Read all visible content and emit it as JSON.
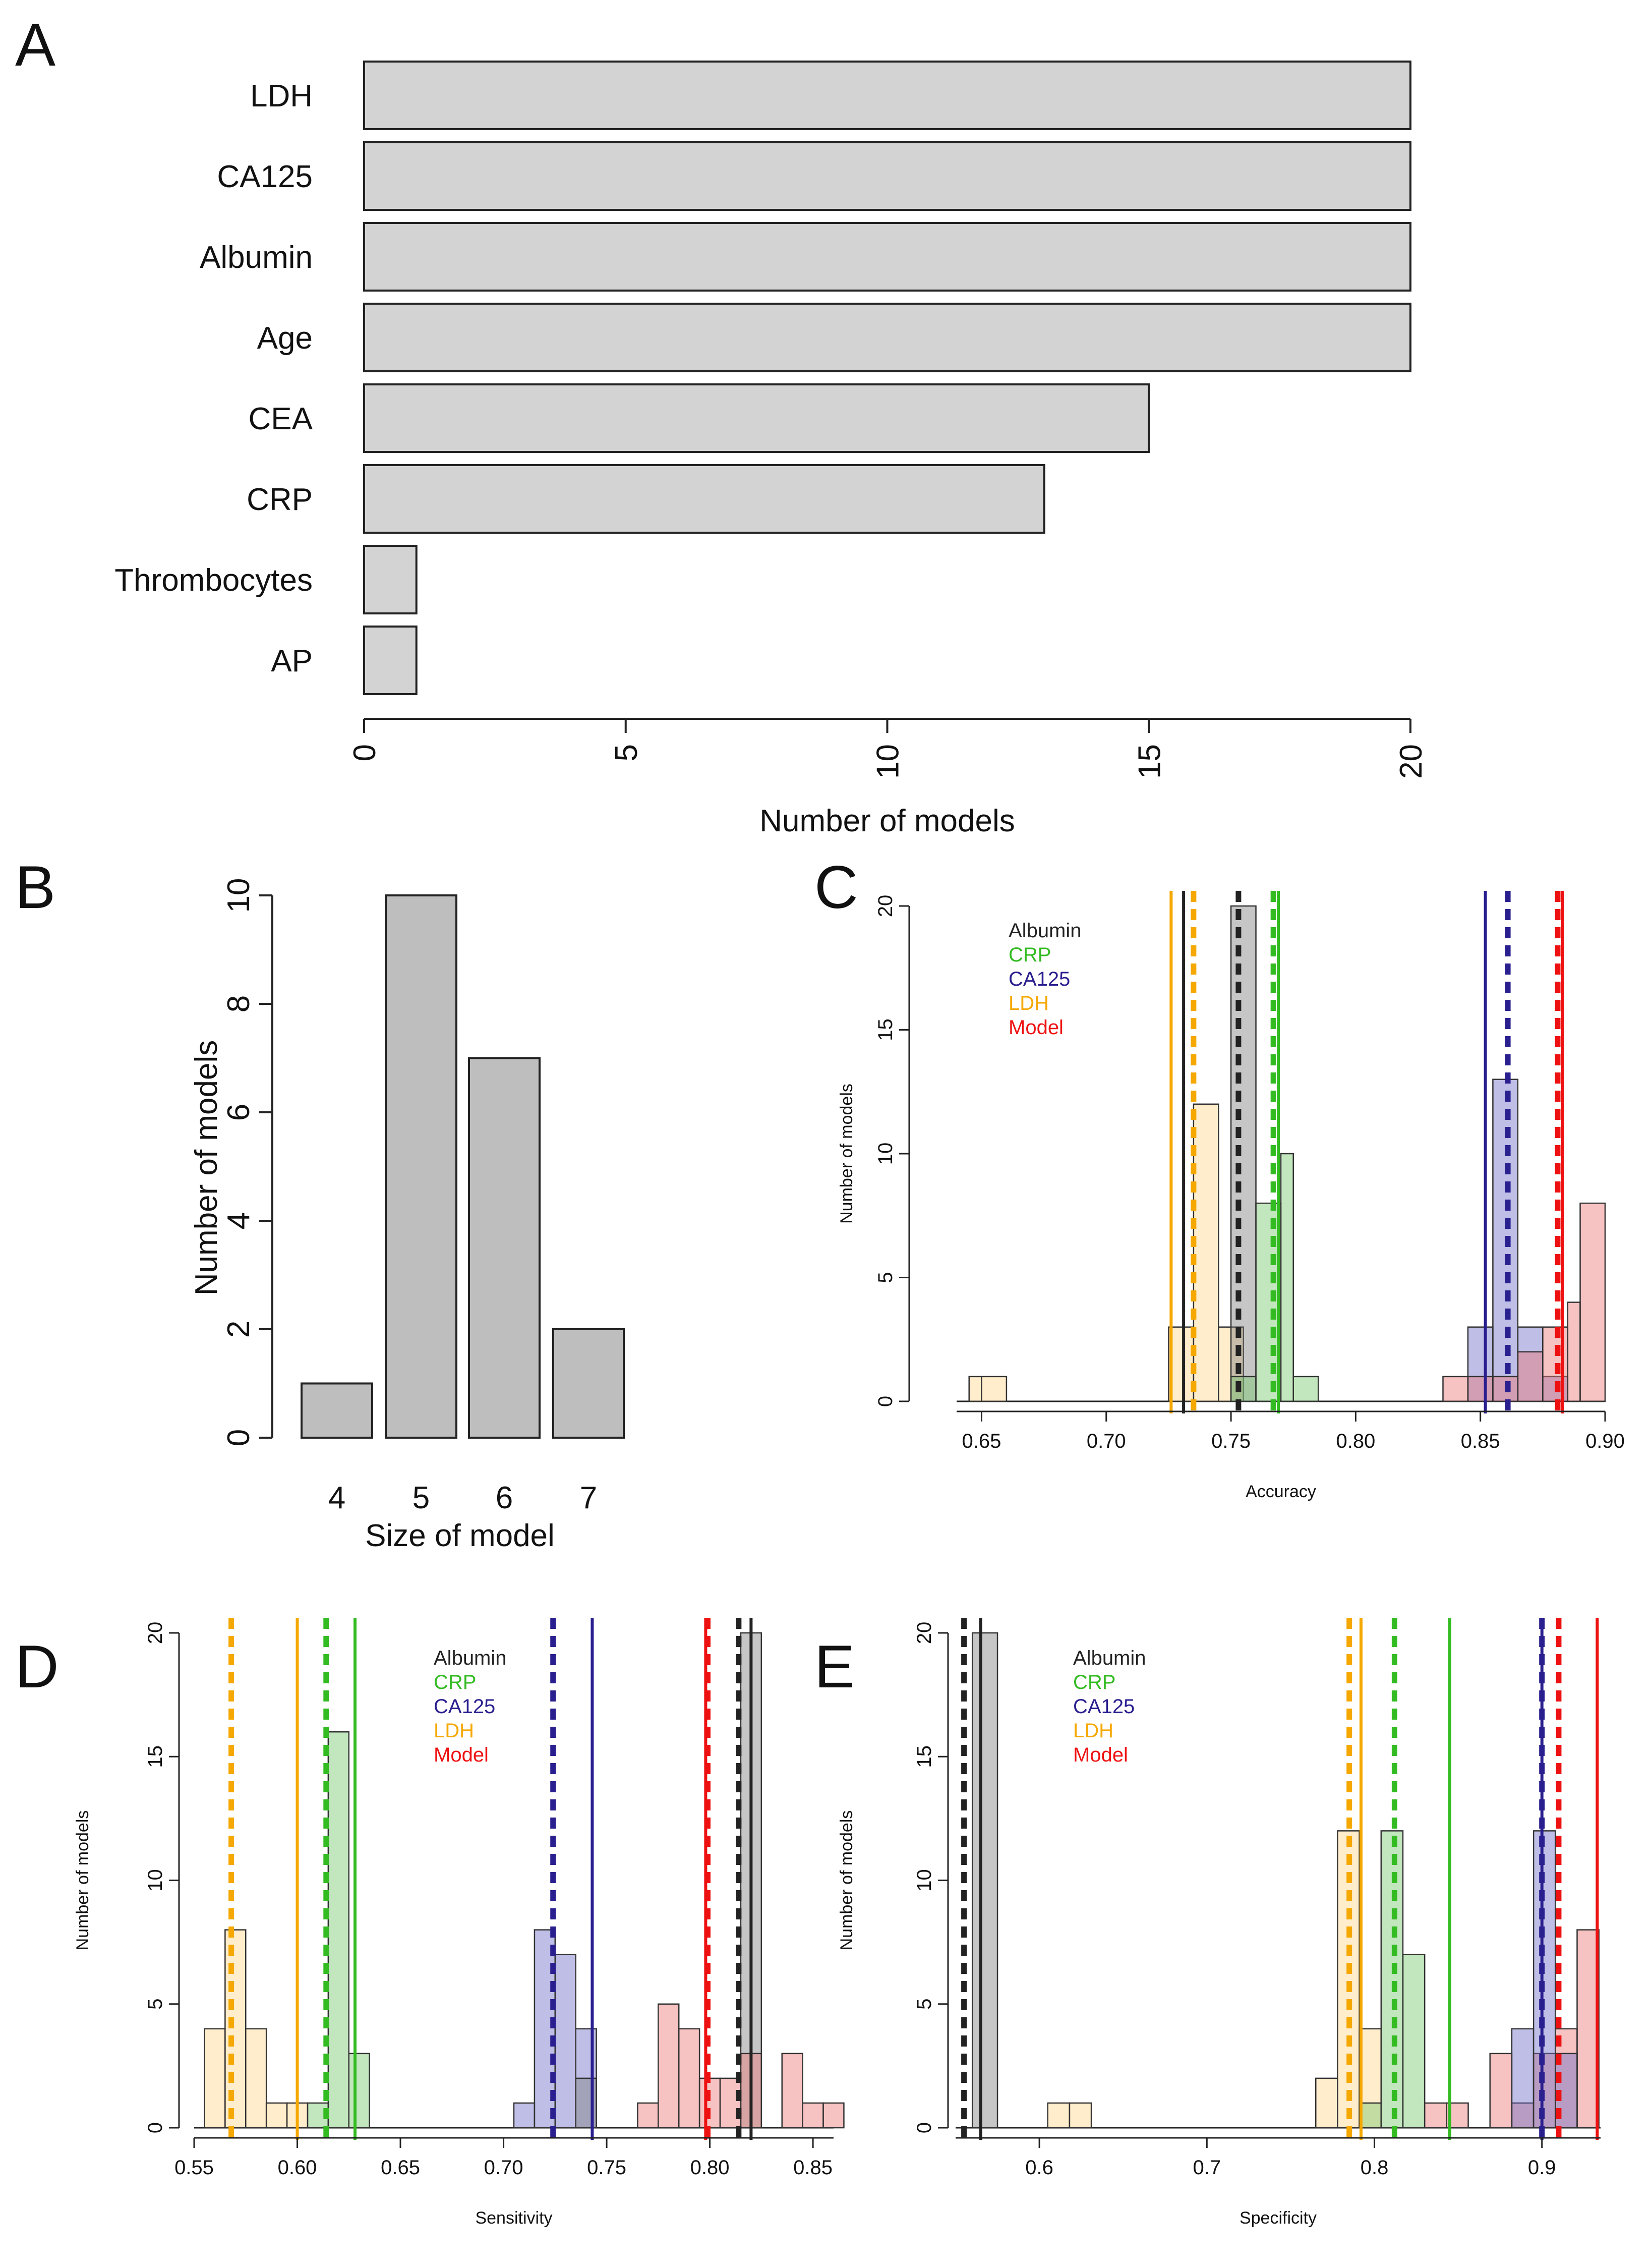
{
  "chart_data": [
    {
      "panel": "A",
      "type": "bar",
      "orientation": "horizontal",
      "categories": [
        "LDH",
        "CA125",
        "Albumin",
        "Age",
        "CEA",
        "CRP",
        "Thrombocytes",
        "AP"
      ],
      "values": [
        20,
        20,
        20,
        20,
        15,
        13,
        1,
        1
      ],
      "xlabel": "Number of models",
      "xlim": [
        0,
        20
      ],
      "xticks": [
        0,
        5,
        10,
        15,
        20
      ],
      "bar_color": "#d3d3d3"
    },
    {
      "panel": "B",
      "type": "bar",
      "categories": [
        "4",
        "5",
        "6",
        "7"
      ],
      "values": [
        1,
        10,
        7,
        2
      ],
      "xlabel": "Size of model",
      "ylabel": "Number of models",
      "ylim": [
        0,
        10
      ],
      "yticks": [
        0,
        2,
        4,
        6,
        8,
        10
      ],
      "bar_color": "#bebebe"
    },
    {
      "panel": "C",
      "type": "histogram",
      "xlabel": "Accuracy",
      "ylabel": "Number of models",
      "xlim": [
        0.64,
        0.9
      ],
      "ylim": [
        0,
        20
      ],
      "xticks": [
        "0.65",
        "0.70",
        "0.75",
        "0.80",
        "0.85",
        "0.90"
      ],
      "yticks": [
        0,
        5,
        10,
        15,
        20
      ],
      "legend": [
        {
          "label": "Albumin",
          "color": "#222222"
        },
        {
          "label": "CRP",
          "color": "#33bb22"
        },
        {
          "label": "CA125",
          "color": "#2a1f8f"
        },
        {
          "label": "LDH",
          "color": "#f5a800"
        },
        {
          "label": "Model",
          "color": "#ee1111"
        }
      ],
      "series": [
        {
          "name": "LDH",
          "color": "#f5a800",
          "fill": "rgba(255,214,140,0.45)",
          "bins": [
            [
              0.645,
              0.65,
              1
            ],
            [
              0.65,
              0.66,
              1
            ],
            [
              0.725,
              0.735,
              3
            ],
            [
              0.735,
              0.745,
              12
            ],
            [
              0.745,
              0.755,
              3
            ]
          ]
        },
        {
          "name": "Albumin",
          "color": "#222222",
          "fill": "rgba(128,128,128,0.45)",
          "bins": [
            [
              0.75,
              0.76,
              20
            ]
          ]
        },
        {
          "name": "CRP",
          "color": "#33bb22",
          "fill": "rgba(120,200,110,0.45)",
          "bins": [
            [
              0.75,
              0.76,
              1
            ],
            [
              0.76,
              0.77,
              8
            ],
            [
              0.77,
              0.775,
              10
            ],
            [
              0.775,
              0.785,
              1
            ]
          ]
        },
        {
          "name": "CA125",
          "color": "#2a1f8f",
          "fill": "rgba(110,110,200,0.45)",
          "bins": [
            [
              0.845,
              0.855,
              3
            ],
            [
              0.855,
              0.865,
              13
            ],
            [
              0.865,
              0.875,
              3
            ],
            [
              0.875,
              0.885,
              1
            ]
          ]
        },
        {
          "name": "Model",
          "color": "#ee1111",
          "fill": "rgba(235,120,120,0.45)",
          "bins": [
            [
              0.835,
              0.845,
              1
            ],
            [
              0.845,
              0.855,
              1
            ],
            [
              0.855,
              0.865,
              1
            ],
            [
              0.865,
              0.875,
              2
            ],
            [
              0.875,
              0.885,
              3
            ],
            [
              0.885,
              0.89,
              4
            ],
            [
              0.89,
              0.9,
              8
            ]
          ]
        }
      ],
      "reference_lines": [
        {
          "name": "LDH",
          "solid": 0.726,
          "dashed": 0.735
        },
        {
          "name": "Albumin",
          "solid": 0.731,
          "dashed": 0.753
        },
        {
          "name": "CRP",
          "solid": 0.769,
          "dashed": 0.767
        },
        {
          "name": "CA125",
          "solid": 0.852,
          "dashed": 0.861
        },
        {
          "name": "Model",
          "solid": 0.883,
          "dashed": 0.881
        }
      ]
    },
    {
      "panel": "D",
      "type": "histogram",
      "xlabel": "Sensitivity",
      "ylabel": "Number of models",
      "xlim": [
        0.55,
        0.86
      ],
      "ylim": [
        0,
        20
      ],
      "xticks": [
        "0.55",
        "0.60",
        "0.65",
        "0.70",
        "0.75",
        "0.80",
        "0.85"
      ],
      "yticks": [
        0,
        5,
        10,
        15,
        20
      ],
      "legend": [
        {
          "label": "Albumin",
          "color": "#222222"
        },
        {
          "label": "CRP",
          "color": "#33bb22"
        },
        {
          "label": "CA125",
          "color": "#2a1f8f"
        },
        {
          "label": "LDH",
          "color": "#f5a800"
        },
        {
          "label": "Model",
          "color": "#ee1111"
        }
      ],
      "series": [
        {
          "name": "LDH",
          "color": "#f5a800",
          "fill": "rgba(255,214,140,0.45)",
          "bins": [
            [
              0.555,
              0.565,
              4
            ],
            [
              0.565,
              0.575,
              8
            ],
            [
              0.575,
              0.585,
              4
            ],
            [
              0.585,
              0.595,
              1
            ],
            [
              0.595,
              0.605,
              1
            ]
          ]
        },
        {
          "name": "CRP",
          "color": "#33bb22",
          "fill": "rgba(120,200,110,0.45)",
          "bins": [
            [
              0.605,
              0.615,
              1
            ],
            [
              0.615,
              0.625,
              16
            ],
            [
              0.625,
              0.635,
              3
            ]
          ]
        },
        {
          "name": "CA125",
          "color": "#2a1f8f",
          "fill": "rgba(110,110,200,0.45)",
          "bins": [
            [
              0.705,
              0.715,
              1
            ],
            [
              0.715,
              0.725,
              8
            ],
            [
              0.725,
              0.735,
              7
            ],
            [
              0.735,
              0.745,
              4
            ]
          ]
        },
        {
          "name": "Albumin",
          "color": "#222222",
          "fill": "rgba(128,128,128,0.45)",
          "bins": [
            [
              0.735,
              0.745,
              2
            ],
            [
              0.815,
              0.825,
              20
            ]
          ]
        },
        {
          "name": "Model",
          "color": "#ee1111",
          "fill": "rgba(235,120,120,0.45)",
          "bins": [
            [
              0.765,
              0.775,
              1
            ],
            [
              0.775,
              0.785,
              5
            ],
            [
              0.785,
              0.795,
              4
            ],
            [
              0.795,
              0.805,
              2
            ],
            [
              0.805,
              0.815,
              2
            ],
            [
              0.815,
              0.825,
              3
            ],
            [
              0.835,
              0.845,
              3
            ],
            [
              0.845,
              0.855,
              1
            ],
            [
              0.855,
              0.865,
              1
            ]
          ]
        }
      ],
      "reference_lines": [
        {
          "name": "LDH",
          "solid": 0.6,
          "dashed": 0.568
        },
        {
          "name": "CRP",
          "solid": 0.628,
          "dashed": 0.614
        },
        {
          "name": "CA125",
          "solid": 0.743,
          "dashed": 0.724
        },
        {
          "name": "Model",
          "solid": 0.798,
          "dashed": 0.799
        },
        {
          "name": "Albumin",
          "solid": 0.82,
          "dashed": 0.814
        }
      ]
    },
    {
      "panel": "E",
      "type": "histogram",
      "xlabel": "Specificity",
      "ylabel": "Number of models",
      "xlim": [
        0.55,
        0.935
      ],
      "ylim": [
        0,
        20
      ],
      "xticks": [
        "0.6",
        "0.7",
        "0.8",
        "0.9"
      ],
      "yticks": [
        0,
        5,
        10,
        15,
        20
      ],
      "legend": [
        {
          "label": "Albumin",
          "color": "#222222"
        },
        {
          "label": "CRP",
          "color": "#33bb22"
        },
        {
          "label": "CA125",
          "color": "#2a1f8f"
        },
        {
          "label": "LDH",
          "color": "#f5a800"
        },
        {
          "label": "Model",
          "color": "#ee1111"
        }
      ],
      "series": [
        {
          "name": "Albumin",
          "color": "#222222",
          "fill": "rgba(128,128,128,0.45)",
          "bins": [
            [
              0.56,
              0.575,
              20
            ]
          ]
        },
        {
          "name": "LDH",
          "color": "#f5a800",
          "fill": "rgba(255,214,140,0.45)",
          "bins": [
            [
              0.605,
              0.618,
              1
            ],
            [
              0.618,
              0.631,
              1
            ],
            [
              0.765,
              0.778,
              2
            ],
            [
              0.778,
              0.791,
              12
            ],
            [
              0.791,
              0.804,
              4
            ]
          ]
        },
        {
          "name": "CRP",
          "color": "#33bb22",
          "fill": "rgba(120,200,110,0.45)",
          "bins": [
            [
              0.791,
              0.804,
              1
            ],
            [
              0.804,
              0.817,
              12
            ],
            [
              0.817,
              0.83,
              7
            ]
          ]
        },
        {
          "name": "Model",
          "color": "#ee1111",
          "fill": "rgba(235,120,120,0.45)",
          "bins": [
            [
              0.83,
              0.843,
              1
            ],
            [
              0.843,
              0.856,
              1
            ],
            [
              0.869,
              0.882,
              3
            ],
            [
              0.882,
              0.895,
              1
            ],
            [
              0.895,
              0.908,
              3
            ],
            [
              0.908,
              0.921,
              4
            ],
            [
              0.921,
              0.934,
              8
            ]
          ]
        },
        {
          "name": "CA125",
          "color": "#2a1f8f",
          "fill": "rgba(110,110,200,0.45)",
          "bins": [
            [
              0.882,
              0.895,
              4
            ],
            [
              0.895,
              0.908,
              12
            ],
            [
              0.908,
              0.921,
              3
            ]
          ]
        }
      ],
      "reference_lines": [
        {
          "name": "Albumin",
          "solid": 0.565,
          "dashed": 0.555
        },
        {
          "name": "LDH",
          "solid": 0.792,
          "dashed": 0.785
        },
        {
          "name": "CRP",
          "solid": 0.845,
          "dashed": 0.812
        },
        {
          "name": "CA125",
          "solid": 0.9,
          "dashed": 0.9
        },
        {
          "name": "Model",
          "solid": 0.933,
          "dashed": 0.91
        }
      ]
    }
  ]
}
